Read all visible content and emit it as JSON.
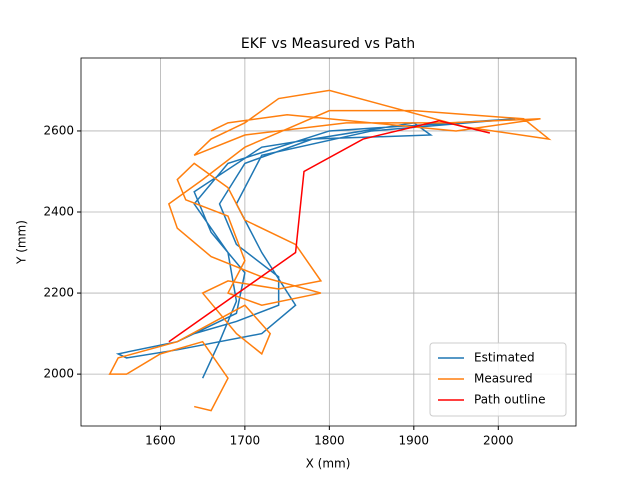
{
  "chart_data": {
    "type": "line",
    "title": "EKF vs Measured vs Path",
    "x_label": "X (mm)",
    "y_label": "Y (mm)",
    "xlim": [
      1506,
      2092
    ],
    "ylim": [
      1872,
      2780
    ],
    "xticks": [
      1600,
      1700,
      1800,
      1900,
      2000
    ],
    "yticks": [
      2000,
      2200,
      2400,
      2600
    ],
    "grid": true,
    "legend": "lower right",
    "series": [
      {
        "name": "Estimated",
        "color": "#1f77b4",
        "x": [
          1650,
          1670,
          1690,
          1680,
          1640,
          1680,
          1800,
          2020,
          1850,
          1720,
          1690,
          1720,
          1760,
          1720,
          1620,
          1560,
          1550,
          1620,
          1690,
          1700,
          1660,
          1640,
          1720,
          1900,
          1920,
          1780,
          1700,
          1670,
          1690,
          1740,
          1740,
          1690,
          1640
        ],
        "values": [
          1990,
          2080,
          2180,
          2300,
          2420,
          2520,
          2600,
          2630,
          2600,
          2540,
          2420,
          2300,
          2170,
          2100,
          2060,
          2040,
          2050,
          2080,
          2150,
          2250,
          2350,
          2450,
          2560,
          2620,
          2590,
          2580,
          2520,
          2420,
          2320,
          2240,
          2170,
          2130,
          2100
        ]
      },
      {
        "name": "Measured",
        "color": "#ff7f0e",
        "x": [
          1640,
          1660,
          1680,
          1650,
          1600,
          1560,
          1540,
          1550,
          1620,
          1700,
          1730,
          1720,
          1690,
          1650,
          1680,
          1740,
          1790,
          1760,
          1700,
          1680,
          1640,
          1620,
          1630,
          1680,
          1700,
          1680,
          1720,
          1790,
          1720,
          1660,
          1620,
          1610,
          1650,
          1700,
          1800,
          1900,
          2030,
          2060,
          1960,
          1800,
          1740,
          1700,
          1660,
          1640,
          1700,
          1820,
          1940,
          2050,
          1950,
          1850,
          1750,
          1680,
          1660
        ],
        "values": [
          1920,
          1910,
          1990,
          2080,
          2050,
          2000,
          2000,
          2040,
          2080,
          2170,
          2100,
          2050,
          2100,
          2200,
          2230,
          2210,
          2230,
          2320,
          2380,
          2460,
          2520,
          2480,
          2430,
          2390,
          2280,
          2200,
          2170,
          2200,
          2240,
          2290,
          2360,
          2420,
          2480,
          2560,
          2650,
          2650,
          2630,
          2580,
          2610,
          2700,
          2680,
          2620,
          2580,
          2540,
          2590,
          2620,
          2620,
          2630,
          2600,
          2620,
          2640,
          2620,
          2600
        ]
      },
      {
        "name": "Path outline",
        "color": "#ff0000",
        "x": [
          1610,
          1760,
          1770,
          1840,
          1930,
          1990
        ],
        "values": [
          2080,
          2300,
          2500,
          2580,
          2625,
          2595
        ]
      }
    ]
  }
}
